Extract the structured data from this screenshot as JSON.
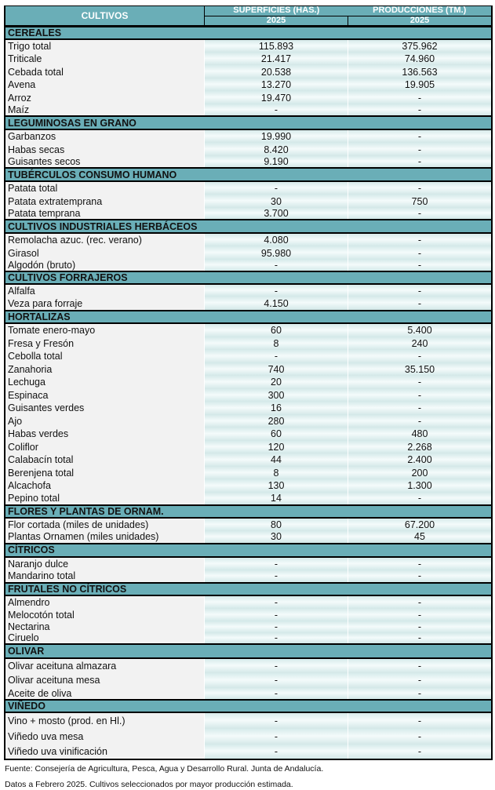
{
  "header": {
    "col_label": "CULTIVOS",
    "col_area": "SUPERFICIES (HAS.)",
    "col_prod": "PRODUCCIONES (TM.)",
    "year_area": "2025",
    "year_prod": "2025"
  },
  "sections": [
    {
      "title": "CEREALES",
      "rows": [
        {
          "name": "Trigo total",
          "area": "115.893",
          "prod": "375.962"
        },
        {
          "name": "Triticale",
          "area": "21.417",
          "prod": "74.960"
        },
        {
          "name": "Cebada total",
          "area": "20.538",
          "prod": "136.563"
        },
        {
          "name": "Avena",
          "area": "13.270",
          "prod": "19.905"
        },
        {
          "name": "Arroz",
          "area": "19.470",
          "prod": "-"
        },
        {
          "name": "Maíz",
          "area": "-",
          "prod": "-"
        }
      ]
    },
    {
      "title": "LEGUMINOSAS EN GRANO",
      "rows": [
        {
          "name": "Garbanzos",
          "area": "19.990",
          "prod": "-"
        },
        {
          "name": "Habas secas",
          "area": "8.420",
          "prod": "-"
        },
        {
          "name": "Guisantes secos",
          "area": "9.190",
          "prod": "-"
        }
      ]
    },
    {
      "title": "TUBÉRCULOS CONSUMO HUMANO",
      "rows": [
        {
          "name": "Patata total",
          "area": "-",
          "prod": "-"
        },
        {
          "name": "Patata extratemprana",
          "area": "30",
          "prod": "750"
        },
        {
          "name": "Patata temprana",
          "area": "3.700",
          "prod": "-"
        }
      ]
    },
    {
      "title": "CULTIVOS INDUSTRIALES HERBÁCEOS",
      "rows": [
        {
          "name": "Remolacha azuc. (rec. verano)",
          "area": "4.080",
          "prod": "-"
        },
        {
          "name": "Girasol",
          "area": "95.980",
          "prod": "-"
        },
        {
          "name": "Algodón (bruto)",
          "area": "-",
          "prod": "-"
        }
      ]
    },
    {
      "title": "CULTIVOS FORRAJEROS",
      "rows": [
        {
          "name": "Alfalfa",
          "area": "-",
          "prod": "-"
        },
        {
          "name": "Veza para forraje",
          "area": "4.150",
          "prod": "-"
        }
      ]
    },
    {
      "title": "HORTALIZAS",
      "rows": [
        {
          "name": "Tomate enero-mayo",
          "area": "60",
          "prod": "5.400"
        },
        {
          "name": "Fresa y Fresón",
          "area": "8",
          "prod": "240"
        },
        {
          "name": "Cebolla total",
          "area": "-",
          "prod": "-"
        },
        {
          "name": "Zanahoria",
          "area": "740",
          "prod": "35.150"
        },
        {
          "name": "Lechuga",
          "area": "20",
          "prod": "-"
        },
        {
          "name": "Espinaca",
          "area": "300",
          "prod": "-"
        },
        {
          "name": "Guisantes verdes",
          "area": "16",
          "prod": "-"
        },
        {
          "name": "Ajo",
          "area": "280",
          "prod": "-"
        },
        {
          "name": "Habas verdes",
          "area": "60",
          "prod": "480"
        },
        {
          "name": "Coliflor",
          "area": "120",
          "prod": "2.268"
        },
        {
          "name": "Calabacín total",
          "area": "44",
          "prod": "2.400"
        },
        {
          "name": "Berenjena total",
          "area": "8",
          "prod": "200"
        },
        {
          "name": "Alcachofa",
          "area": "130",
          "prod": "1.300"
        },
        {
          "name": "Pepino total",
          "area": "14",
          "prod": "-"
        }
      ]
    },
    {
      "title": "FLORES Y PLANTAS DE ORNAM.",
      "rows": [
        {
          "name": "Flor cortada (miles de unidades)",
          "area": "80",
          "prod": "67.200"
        },
        {
          "name": "Plantas Ornamen (miles unidades)",
          "area": "30",
          "prod": "45"
        }
      ]
    },
    {
      "title": "CÍTRICOS",
      "rows": [
        {
          "name": "Naranjo dulce",
          "area": "-",
          "prod": "-"
        },
        {
          "name": "Mandarino total",
          "area": "-",
          "prod": "-"
        }
      ]
    },
    {
      "title": "FRUTALES NO CÍTRICOS",
      "rows": [
        {
          "name": "Almendro",
          "area": "-",
          "prod": "-"
        },
        {
          "name": "Melocotón total",
          "area": "-",
          "prod": "-"
        },
        {
          "name": "Nectarina",
          "area": "-",
          "prod": "-"
        },
        {
          "name": "Ciruelo",
          "area": "-",
          "prod": "-"
        }
      ]
    },
    {
      "title": "OLIVAR",
      "rows": [
        {
          "name": "Olivar aceituna almazara",
          "area": "-",
          "prod": "-"
        },
        {
          "name": "Olivar aceituna mesa",
          "area": "-",
          "prod": "-"
        },
        {
          "name": "Aceite de oliva",
          "area": "-",
          "prod": "-"
        }
      ]
    },
    {
      "title": "VIÑEDO",
      "rows": [
        {
          "name": "Vino + mosto (prod. en Hl.)",
          "area": "-",
          "prod": "-"
        },
        {
          "name": "Viñedo uva mesa",
          "area": "-",
          "prod": "-"
        },
        {
          "name": "Viñedo uva vinificación",
          "area": "-",
          "prod": "-"
        }
      ]
    }
  ],
  "footer": {
    "source": "Fuente: Consejería de Agricultura, Pesca, Agua y Desarrollo Rural. Junta de Andalucía.",
    "note": "Datos a Febrero 2025. Cultivos seleccionados por mayor producción estimada."
  },
  "colors": {
    "header_bg": "#6aaeb7",
    "label_bg": "#f2f2f2",
    "cell_bg": "#e4f2f2"
  }
}
